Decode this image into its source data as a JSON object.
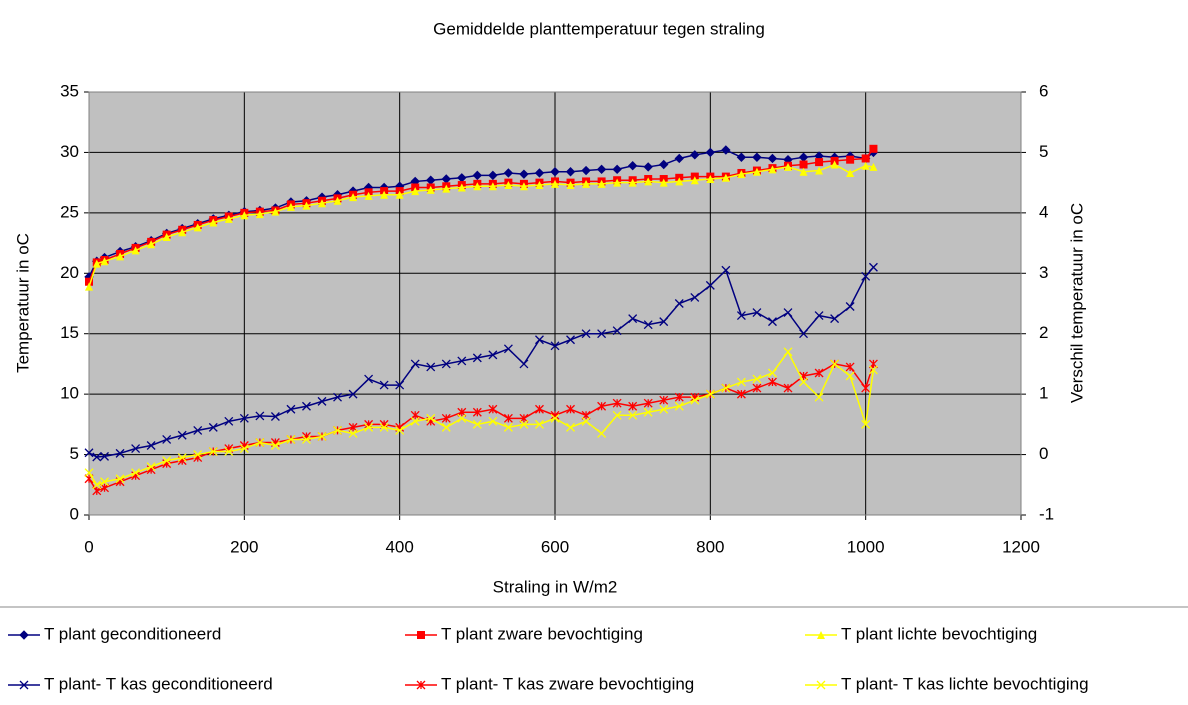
{
  "chart_data": {
    "type": "line",
    "title": "Gemiddelde planttemperatuur tegen straling",
    "xlabel": "Straling in W/m2",
    "ylabel": "Temperatuur in oC",
    "y2label": "Verschil temperatuur in oC",
    "xlim": [
      0,
      1200
    ],
    "xticks": [
      0,
      200,
      400,
      600,
      800,
      1000,
      1200
    ],
    "ylim": [
      0,
      35
    ],
    "yticks": [
      0,
      5,
      10,
      15,
      20,
      25,
      30,
      35
    ],
    "y2lim": [
      -1,
      6
    ],
    "y2ticks": [
      -1,
      0,
      1,
      2,
      3,
      4,
      5,
      6
    ],
    "grid": true,
    "legend": "bottom",
    "x": [
      0,
      10,
      20,
      40,
      60,
      80,
      100,
      120,
      140,
      160,
      180,
      200,
      220,
      240,
      260,
      280,
      300,
      320,
      340,
      360,
      380,
      400,
      420,
      440,
      460,
      480,
      500,
      520,
      540,
      560,
      580,
      600,
      620,
      640,
      660,
      680,
      700,
      720,
      740,
      760,
      780,
      800,
      820,
      840,
      860,
      880,
      900,
      920,
      940,
      960,
      980,
      1000,
      1010
    ],
    "series": [
      {
        "name": "T plant geconditioneerd",
        "color": "#000080",
        "marker": "diamond",
        "values": [
          19.7,
          21,
          21.3,
          21.8,
          22.2,
          22.7,
          23.3,
          23.7,
          24.1,
          24.5,
          24.8,
          25.1,
          25.2,
          25.4,
          25.9,
          26,
          26.3,
          26.5,
          26.8,
          27.1,
          27.1,
          27.2,
          27.6,
          27.7,
          27.8,
          27.9,
          28.1,
          28.1,
          28.3,
          28.2,
          28.3,
          28.4,
          28.4,
          28.5,
          28.6,
          28.6,
          28.9,
          28.8,
          29,
          29.5,
          29.8,
          30,
          30.2,
          29.6,
          29.6,
          29.5,
          29.4,
          29.6,
          29.7,
          29.6,
          29.7,
          29.5,
          30
        ]
      },
      {
        "name": "T plant zware bevochtiging",
        "color": "#ff0000",
        "marker": "square",
        "values": [
          19.3,
          20.9,
          21.1,
          21.6,
          22.1,
          22.6,
          23.2,
          23.6,
          24,
          24.4,
          24.7,
          25,
          25.1,
          25.2,
          25.7,
          25.8,
          26,
          26.2,
          26.5,
          26.7,
          26.8,
          26.8,
          27.1,
          27.1,
          27.2,
          27.3,
          27.4,
          27.4,
          27.5,
          27.4,
          27.5,
          27.6,
          27.5,
          27.6,
          27.6,
          27.7,
          27.7,
          27.8,
          27.8,
          27.9,
          28,
          28,
          28,
          28.3,
          28.5,
          28.7,
          28.9,
          29,
          29.2,
          29.3,
          29.4,
          29.5,
          30.3
        ]
      },
      {
        "name": "T plant lichte bevochtiging",
        "color": "#ffff00",
        "marker": "triangle",
        "values": [
          18.9,
          20.8,
          21,
          21.4,
          21.9,
          22.4,
          23,
          23.4,
          23.8,
          24.2,
          24.5,
          24.8,
          24.9,
          25.1,
          25.5,
          25.6,
          25.8,
          26,
          26.3,
          26.4,
          26.5,
          26.5,
          26.8,
          26.9,
          27,
          27.1,
          27.2,
          27.2,
          27.3,
          27.2,
          27.3,
          27.4,
          27.3,
          27.4,
          27.4,
          27.5,
          27.5,
          27.6,
          27.5,
          27.6,
          27.7,
          27.8,
          27.9,
          28.2,
          28.4,
          28.6,
          28.8,
          28.4,
          28.5,
          29,
          28.3,
          28.9,
          28.8
        ]
      },
      {
        "name": "T plant- T kas geconditioneerd",
        "color": "#000080",
        "marker": "x",
        "axis": "y2",
        "values": [
          0.03,
          -0.04,
          -0.03,
          0.02,
          0.1,
          0.15,
          0.25,
          0.32,
          0.4,
          0.45,
          0.55,
          0.6,
          0.64,
          0.63,
          0.75,
          0.8,
          0.88,
          0.95,
          1,
          1.25,
          1.15,
          1.15,
          1.5,
          1.45,
          1.5,
          1.55,
          1.6,
          1.65,
          1.75,
          1.5,
          1.9,
          1.8,
          1.9,
          2,
          2,
          2.05,
          2.25,
          2.15,
          2.2,
          2.5,
          2.6,
          2.8,
          3.05,
          2.3,
          2.35,
          2.2,
          2.35,
          2,
          2.3,
          2.25,
          2.45,
          2.95,
          3.1
        ]
      },
      {
        "name": "T plant- T kas zware bevochtiging",
        "color": "#ff0000",
        "marker": "star",
        "axis": "y2",
        "values": [
          -0.4,
          -0.6,
          -0.55,
          -0.45,
          -0.35,
          -0.25,
          -0.15,
          -0.1,
          -0.05,
          0.05,
          0.1,
          0.15,
          0.2,
          0.2,
          0.25,
          0.3,
          0.3,
          0.4,
          0.45,
          0.5,
          0.5,
          0.45,
          0.65,
          0.55,
          0.6,
          0.7,
          0.7,
          0.75,
          0.6,
          0.6,
          0.75,
          0.65,
          0.75,
          0.65,
          0.8,
          0.85,
          0.8,
          0.85,
          0.9,
          0.95,
          0.95,
          1,
          1.1,
          1,
          1.1,
          1.2,
          1.1,
          1.3,
          1.35,
          1.5,
          1.45,
          1.1,
          1.5
        ]
      },
      {
        "name": "T plant- T kas lichte bevochtiging",
        "color": "#ffff00",
        "marker": "x",
        "axis": "y2",
        "values": [
          -0.3,
          -0.5,
          -0.45,
          -0.4,
          -0.3,
          -0.2,
          -0.1,
          -0.05,
          0,
          0.05,
          0.05,
          0.1,
          0.2,
          0.15,
          0.25,
          0.25,
          0.3,
          0.4,
          0.35,
          0.45,
          0.45,
          0.4,
          0.55,
          0.6,
          0.45,
          0.6,
          0.5,
          0.55,
          0.45,
          0.5,
          0.5,
          0.6,
          0.45,
          0.55,
          0.35,
          0.65,
          0.65,
          0.7,
          0.75,
          0.8,
          0.9,
          1,
          1.1,
          1.2,
          1.25,
          1.35,
          1.7,
          1.2,
          0.95,
          1.5,
          1.3,
          0.5,
          1.4
        ]
      }
    ]
  }
}
